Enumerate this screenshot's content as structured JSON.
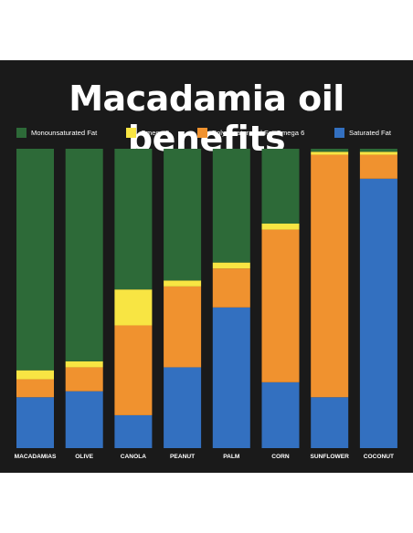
{
  "chart_data": {
    "type": "bar",
    "stacked": true,
    "normalized": true,
    "title": "Macadamia oil benefits",
    "xlabel": "",
    "ylabel": "",
    "ylim": [
      0,
      100
    ],
    "grid": false,
    "legend_position": "top",
    "categories": [
      "MACADAMIAS",
      "OLIVE",
      "CANOLA",
      "PEANUT",
      "PALM",
      "CORN",
      "SUNFLOWER",
      "COCONUT"
    ],
    "series": [
      {
        "name": "Saturated Fat",
        "color": "#3370c0",
        "values": [
          17,
          19,
          11,
          27,
          47,
          22,
          17,
          90
        ]
      },
      {
        "name": "Polyunsaturated Fat Omega 6",
        "color": "#f0922f",
        "values": [
          6,
          8,
          30,
          27,
          13,
          51,
          81,
          8
        ]
      },
      {
        "name": "Omega 3",
        "color": "#f8e543",
        "values": [
          3,
          2,
          12,
          2,
          2,
          2,
          1,
          1
        ]
      },
      {
        "name": "Monounsaturated Fat",
        "color": "#2d6a38",
        "values": [
          74,
          71,
          47,
          44,
          38,
          25,
          1,
          1
        ]
      }
    ]
  },
  "legend": {
    "items": [
      {
        "label": "Monounsaturated Fat",
        "color": "#2d6a38"
      },
      {
        "label": "Omega 3",
        "color": "#f8e543"
      },
      {
        "label": "Polyunsaturated Fat Omega 6",
        "color": "#f0922f"
      },
      {
        "label": "Saturated Fat",
        "color": "#3370c0"
      }
    ]
  },
  "colors": {
    "background": "#1a1a1a",
    "text": "#ffffff"
  }
}
